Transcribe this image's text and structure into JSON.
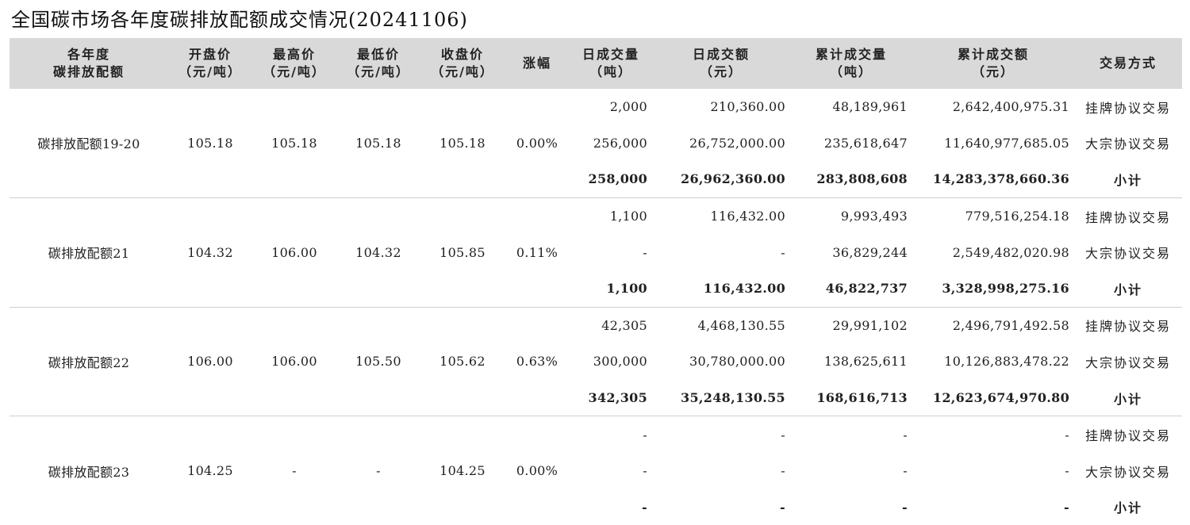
{
  "title": "全国碳市场各年度碳排放配额成交情况(20241106)",
  "header": {
    "c1a": "各年度",
    "c1b": "碳排放配额",
    "c2a": "开盘价",
    "c2b": "（元/吨）",
    "c3a": "最高价",
    "c3b": "（元/吨）",
    "c4a": "最低价",
    "c4b": "（元/吨）",
    "c5a": "收盘价",
    "c5b": "（元/吨）",
    "c6a": "涨幅",
    "c7a": "日成交量",
    "c7b": "（吨）",
    "c8a": "日成交额",
    "c8b": "（元）",
    "c9a": "累计成交量",
    "c9b": "（吨）",
    "c10a": "累计成交额",
    "c10b": "（元）",
    "c11a": "交易方式"
  },
  "groups": [
    {
      "name": "碳排放配额19-20",
      "open": "105.18",
      "high": "105.18",
      "low": "105.18",
      "close": "105.18",
      "change": "0.00%",
      "rows": [
        {
          "vol": "2,000",
          "amt": "210,360.00",
          "cvol": "48,189,961",
          "camt": "2,642,400,975.31",
          "method": "挂牌协议交易"
        },
        {
          "vol": "256,000",
          "amt": "26,752,000.00",
          "cvol": "235,618,647",
          "camt": "11,640,977,685.05",
          "method": "大宗协议交易"
        },
        {
          "vol": "258,000",
          "amt": "26,962,360.00",
          "cvol": "283,808,608",
          "camt": "14,283,378,660.36",
          "method": "小计"
        }
      ]
    },
    {
      "name": "碳排放配额21",
      "open": "104.32",
      "high": "106.00",
      "low": "104.32",
      "close": "105.85",
      "change": "0.11%",
      "rows": [
        {
          "vol": "1,100",
          "amt": "116,432.00",
          "cvol": "9,993,493",
          "camt": "779,516,254.18",
          "method": "挂牌协议交易"
        },
        {
          "vol": "-",
          "amt": "-",
          "cvol": "36,829,244",
          "camt": "2,549,482,020.98",
          "method": "大宗协议交易"
        },
        {
          "vol": "1,100",
          "amt": "116,432.00",
          "cvol": "46,822,737",
          "camt": "3,328,998,275.16",
          "method": "小计"
        }
      ]
    },
    {
      "name": "碳排放配额22",
      "open": "106.00",
      "high": "106.00",
      "low": "105.50",
      "close": "105.62",
      "change": "0.63%",
      "rows": [
        {
          "vol": "42,305",
          "amt": "4,468,130.55",
          "cvol": "29,991,102",
          "camt": "2,496,791,492.58",
          "method": "挂牌协议交易"
        },
        {
          "vol": "300,000",
          "amt": "30,780,000.00",
          "cvol": "138,625,611",
          "camt": "10,126,883,478.22",
          "method": "大宗协议交易"
        },
        {
          "vol": "342,305",
          "amt": "35,248,130.55",
          "cvol": "168,616,713",
          "camt": "12,623,674,970.80",
          "method": "小计"
        }
      ]
    },
    {
      "name": "碳排放配额23",
      "open": "104.25",
      "high": "-",
      "low": "-",
      "close": "104.25",
      "change": "0.00%",
      "rows": [
        {
          "vol": "-",
          "amt": "-",
          "cvol": "-",
          "camt": "-",
          "method": "挂牌协议交易"
        },
        {
          "vol": "-",
          "amt": "-",
          "cvol": "-",
          "camt": "-",
          "method": "大宗协议交易"
        },
        {
          "vol": "-",
          "amt": "-",
          "cvol": "-",
          "camt": "-",
          "method": "小计"
        }
      ]
    }
  ]
}
